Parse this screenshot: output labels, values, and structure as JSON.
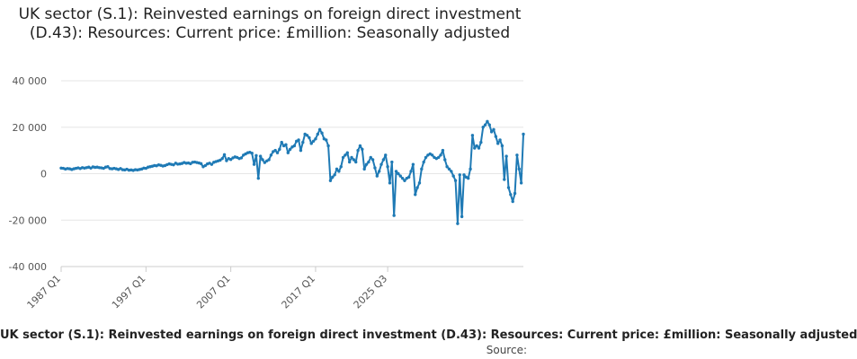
{
  "chart_data": {
    "type": "line",
    "title": "UK sector (S.1): Reinvested earnings on foreign direct investment (D.43): Resources: Current price: £million: Seasonally adjusted",
    "caption": "UK sector (S.1): Reinvested earnings on foreign direct investment (D.43): Resources: Current price: £million: Seasonally adjusted",
    "source_label": "Source:",
    "xlabel": "",
    "ylabel": "",
    "ylim": [
      -40000,
      40000
    ],
    "yticks": [
      -40000,
      -20000,
      0,
      20000,
      40000
    ],
    "ytick_labels": [
      "-40 000",
      "-20 000",
      "0",
      "20 000",
      "40 000"
    ],
    "xticks": [
      "1987 Q1",
      "1997 Q1",
      "2007 Q1",
      "2017 Q1",
      "2025 Q3"
    ],
    "grid": "horizontal",
    "line_color": "#1f7ab5",
    "series": [
      {
        "start": "1987 Q1",
        "frequency": "quarterly",
        "values": [
          2400,
          2300,
          2000,
          2200,
          2100,
          1800,
          2100,
          2300,
          2500,
          2200,
          2600,
          2400,
          2600,
          2800,
          2400,
          2900,
          2700,
          2800,
          2600,
          2500,
          2300,
          2800,
          3000,
          2200,
          2100,
          2300,
          2100,
          1800,
          2200,
          1700,
          1600,
          1900,
          1500,
          1600,
          1400,
          1700,
          1600,
          1800,
          2000,
          2400,
          2300,
          2800,
          3000,
          3200,
          3500,
          3400,
          3800,
          3600,
          3300,
          3500,
          3900,
          4200,
          4000,
          3800,
          4500,
          4100,
          4200,
          4400,
          4800,
          4500,
          4600,
          4300,
          4900,
          5000,
          4800,
          4600,
          4300,
          3000,
          3500,
          4200,
          4500,
          4000,
          4900,
          5200,
          5500,
          5800,
          6500,
          8200,
          5600,
          6500,
          6100,
          6800,
          7200,
          7000,
          6500,
          6800,
          8000,
          8500,
          9000,
          9200,
          8800,
          4000,
          7800,
          -2000,
          7500,
          6000,
          4800,
          5500,
          6000,
          8000,
          9500,
          10000,
          9000,
          10500,
          13500,
          12000,
          12500,
          9000,
          10500,
          11500,
          12000,
          14000,
          14500,
          10000,
          13500,
          17000,
          16500,
          15500,
          13000,
          14000,
          15000,
          17000,
          19000,
          17500,
          15000,
          14500,
          12000,
          -3000,
          -1500,
          -500,
          2000,
          1000,
          3000,
          7000,
          8000,
          9000,
          5000,
          7000,
          6000,
          5000,
          10000,
          12000,
          10500,
          2000,
          4000,
          5000,
          7000,
          6000,
          2500,
          -1000,
          1000,
          4000,
          6000,
          8000,
          3000,
          -4000,
          5000,
          -18000,
          1000,
          0,
          -1000,
          -2000,
          -3000,
          -2000,
          -1500,
          1000,
          4000,
          -9000,
          -6000,
          -4000,
          2000,
          5000,
          7000,
          8000,
          8500,
          8000,
          7000,
          6500,
          7000,
          8000,
          10000,
          6000,
          3000,
          2000,
          1000,
          -1000,
          -3000,
          -21500,
          -500,
          -18500,
          -500,
          -1500,
          -2000,
          2000,
          16500,
          11000,
          12000,
          11000,
          13500,
          20000,
          21000,
          22500,
          21000,
          18000,
          19000,
          16000,
          13000,
          14500,
          12000,
          -2500,
          7500,
          -6000,
          -9000,
          -12000,
          -8500,
          8000,
          2000,
          -4000,
          17000
        ]
      }
    ]
  }
}
